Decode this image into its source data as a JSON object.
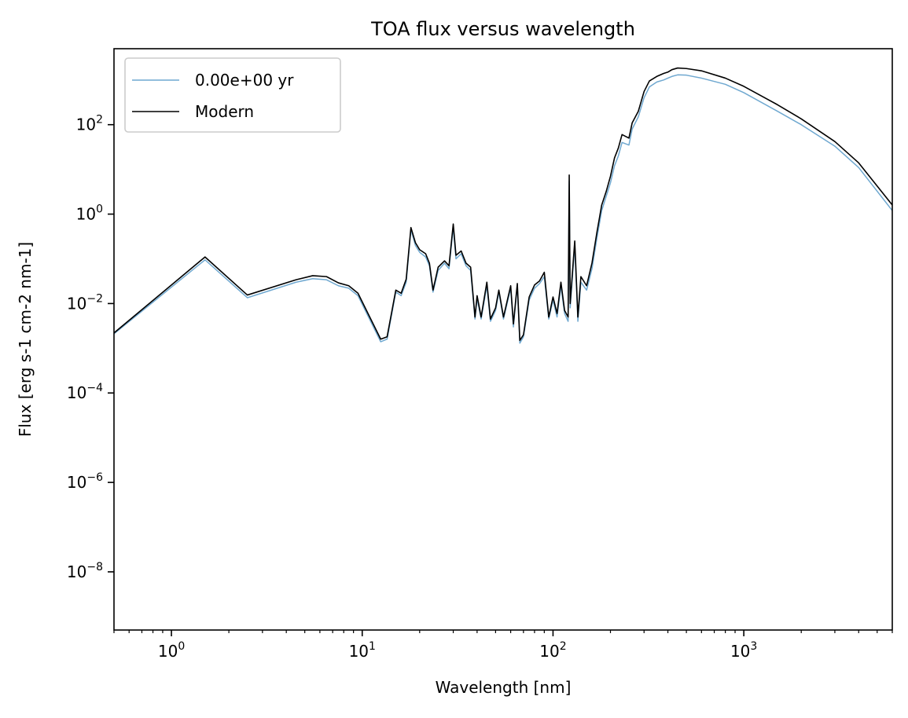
{
  "chart_data": {
    "type": "line",
    "title": "TOA flux versus wavelength",
    "xlabel": "Wavelength [nm]",
    "ylabel": "Flux [erg s-1 cm-2 nm-1]",
    "xscale": "log",
    "yscale": "log",
    "xlim": [
      0.5,
      6000
    ],
    "ylim": [
      5e-10,
      5000
    ],
    "grid": false,
    "legend_position": "upper-left",
    "x_ticks": [
      {
        "value": 1,
        "label": "10",
        "exp": "0"
      },
      {
        "value": 10,
        "label": "10",
        "exp": "1"
      },
      {
        "value": 100,
        "label": "10",
        "exp": "2"
      },
      {
        "value": 1000,
        "label": "10",
        "exp": "3"
      }
    ],
    "y_ticks": [
      {
        "value": 1e-08,
        "label": "10",
        "exp": "−8"
      },
      {
        "value": 1e-06,
        "label": "10",
        "exp": "−6"
      },
      {
        "value": 0.0001,
        "label": "10",
        "exp": "−4"
      },
      {
        "value": 0.01,
        "label": "10",
        "exp": "−2"
      },
      {
        "value": 1,
        "label": "10",
        "exp": "0"
      },
      {
        "value": 100,
        "label": "10",
        "exp": "2"
      }
    ],
    "series": [
      {
        "name": "0.00e+00 yr",
        "color": "#6fa8d0",
        "points": [
          [
            0.5,
            0.0021
          ],
          [
            1.5,
            0.095
          ],
          [
            2.5,
            0.0135
          ],
          [
            4.5,
            0.03
          ],
          [
            5.5,
            0.036
          ],
          [
            6.5,
            0.034
          ],
          [
            7.5,
            0.025
          ],
          [
            8.5,
            0.022
          ],
          [
            9.5,
            0.015
          ],
          [
            12.5,
            0.0014
          ],
          [
            13.5,
            0.0016
          ],
          [
            15,
            0.018
          ],
          [
            16,
            0.015
          ],
          [
            17,
            0.03
          ],
          [
            18,
            0.45
          ],
          [
            19,
            0.2
          ],
          [
            20,
            0.14
          ],
          [
            21.5,
            0.11
          ],
          [
            22.5,
            0.07
          ],
          [
            23.5,
            0.018
          ],
          [
            25,
            0.055
          ],
          [
            27,
            0.08
          ],
          [
            28.5,
            0.06
          ],
          [
            30,
            0.5
          ],
          [
            31,
            0.1
          ],
          [
            33,
            0.13
          ],
          [
            35,
            0.07
          ],
          [
            37,
            0.055
          ],
          [
            39,
            0.0045
          ],
          [
            40,
            0.013
          ],
          [
            42,
            0.0045
          ],
          [
            45,
            0.025
          ],
          [
            47,
            0.004
          ],
          [
            50,
            0.007
          ],
          [
            52,
            0.018
          ],
          [
            55,
            0.0045
          ],
          [
            60,
            0.022
          ],
          [
            62,
            0.003
          ],
          [
            65,
            0.025
          ],
          [
            67,
            0.0013
          ],
          [
            70,
            0.0018
          ],
          [
            75,
            0.012
          ],
          [
            80,
            0.022
          ],
          [
            85,
            0.028
          ],
          [
            90,
            0.04
          ],
          [
            95,
            0.0045
          ],
          [
            100,
            0.012
          ],
          [
            105,
            0.005
          ],
          [
            110,
            0.025
          ],
          [
            115,
            0.006
          ],
          [
            120,
            0.004
          ],
          [
            121.6,
            5.5
          ],
          [
            123,
            0.008
          ],
          [
            130,
            0.2
          ],
          [
            135,
            0.004
          ],
          [
            140,
            0.03
          ],
          [
            150,
            0.02
          ],
          [
            160,
            0.06
          ],
          [
            170,
            0.3
          ],
          [
            180,
            1.2
          ],
          [
            190,
            2.5
          ],
          [
            200,
            5
          ],
          [
            210,
            12
          ],
          [
            220,
            20
          ],
          [
            230,
            40
          ],
          [
            250,
            35
          ],
          [
            260,
            80
          ],
          [
            280,
            150
          ],
          [
            300,
            400
          ],
          [
            320,
            700
          ],
          [
            350,
            900
          ],
          [
            380,
            1000
          ],
          [
            400,
            1100
          ],
          [
            420,
            1200
          ],
          [
            450,
            1300
          ],
          [
            500,
            1280
          ],
          [
            600,
            1100
          ],
          [
            800,
            800
          ],
          [
            1000,
            520
          ],
          [
            1500,
            200
          ],
          [
            2000,
            100
          ],
          [
            3000,
            33
          ],
          [
            4000,
            11
          ],
          [
            6000,
            1.2
          ]
        ]
      },
      {
        "name": "Modern",
        "color": "#000000",
        "points": [
          [
            0.5,
            0.0022
          ],
          [
            1.5,
            0.11
          ],
          [
            2.5,
            0.0155
          ],
          [
            4.5,
            0.034
          ],
          [
            5.5,
            0.042
          ],
          [
            6.5,
            0.04
          ],
          [
            7.5,
            0.029
          ],
          [
            8.5,
            0.025
          ],
          [
            9.5,
            0.017
          ],
          [
            12.5,
            0.0016
          ],
          [
            13.5,
            0.0018
          ],
          [
            15,
            0.02
          ],
          [
            16,
            0.017
          ],
          [
            17,
            0.035
          ],
          [
            18,
            0.5
          ],
          [
            19,
            0.23
          ],
          [
            20,
            0.16
          ],
          [
            21.5,
            0.13
          ],
          [
            22.5,
            0.08
          ],
          [
            23.5,
            0.02
          ],
          [
            25,
            0.065
          ],
          [
            27,
            0.09
          ],
          [
            28.5,
            0.07
          ],
          [
            30,
            0.6
          ],
          [
            31,
            0.12
          ],
          [
            33,
            0.15
          ],
          [
            35,
            0.08
          ],
          [
            37,
            0.065
          ],
          [
            39,
            0.005
          ],
          [
            40,
            0.015
          ],
          [
            42,
            0.005
          ],
          [
            45,
            0.03
          ],
          [
            47,
            0.0045
          ],
          [
            50,
            0.008
          ],
          [
            52,
            0.02
          ],
          [
            55,
            0.005
          ],
          [
            60,
            0.025
          ],
          [
            62,
            0.0035
          ],
          [
            65,
            0.028
          ],
          [
            67,
            0.0015
          ],
          [
            70,
            0.002
          ],
          [
            75,
            0.014
          ],
          [
            80,
            0.026
          ],
          [
            85,
            0.032
          ],
          [
            90,
            0.05
          ],
          [
            95,
            0.005
          ],
          [
            100,
            0.014
          ],
          [
            105,
            0.006
          ],
          [
            110,
            0.03
          ],
          [
            115,
            0.007
          ],
          [
            120,
            0.005
          ],
          [
            121.6,
            7.5
          ],
          [
            123,
            0.01
          ],
          [
            130,
            0.25
          ],
          [
            135,
            0.005
          ],
          [
            140,
            0.04
          ],
          [
            150,
            0.025
          ],
          [
            160,
            0.08
          ],
          [
            170,
            0.4
          ],
          [
            180,
            1.6
          ],
          [
            190,
            3.2
          ],
          [
            200,
            7
          ],
          [
            210,
            18
          ],
          [
            220,
            30
          ],
          [
            230,
            60
          ],
          [
            250,
            50
          ],
          [
            260,
            110
          ],
          [
            280,
            200
          ],
          [
            300,
            550
          ],
          [
            320,
            950
          ],
          [
            350,
            1200
          ],
          [
            380,
            1400
          ],
          [
            400,
            1500
          ],
          [
            420,
            1700
          ],
          [
            450,
            1850
          ],
          [
            500,
            1800
          ],
          [
            600,
            1600
          ],
          [
            800,
            1100
          ],
          [
            1000,
            720
          ],
          [
            1500,
            280
          ],
          [
            2000,
            135
          ],
          [
            3000,
            42
          ],
          [
            4000,
            14
          ],
          [
            6000,
            1.6
          ]
        ]
      }
    ]
  }
}
